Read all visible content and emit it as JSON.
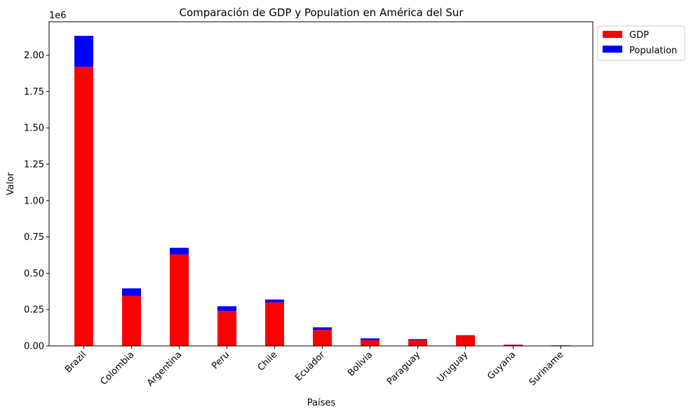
{
  "chart_data": {
    "type": "bar",
    "stacked": true,
    "title": "Comparación de GDP y Population en América del Sur",
    "xlabel": "Países",
    "ylabel": "Valor",
    "y_offset_label": "1e6",
    "ylim": [
      0,
      2.23
    ],
    "yticks": [
      "0.00",
      "0.25",
      "0.50",
      "0.75",
      "1.00",
      "1.25",
      "1.50",
      "1.75",
      "2.00"
    ],
    "ytick_values": [
      0,
      0.25,
      0.5,
      0.75,
      1.0,
      1.25,
      1.5,
      1.75,
      2.0
    ],
    "categories": [
      "Brazil",
      "Colombia",
      "Argentina",
      "Peru",
      "Chile",
      "Ecuador",
      "Bolivia",
      "Paraguay",
      "Uruguay",
      "Guyana",
      "Suriname"
    ],
    "series": [
      {
        "name": "GDP",
        "color": "#ff0000",
        "values": [
          1.92,
          0.345,
          0.63,
          0.24,
          0.3,
          0.11,
          0.04,
          0.04,
          0.07,
          0.008,
          0.004
        ]
      },
      {
        "name": "Population",
        "color": "#0000ff",
        "values": [
          0.213,
          0.051,
          0.045,
          0.033,
          0.019,
          0.018,
          0.012,
          0.007,
          0.0035,
          0.0008,
          0.0006
        ]
      }
    ],
    "legend": {
      "position": "outside-top-right",
      "entries": [
        "GDP",
        "Population"
      ]
    },
    "grid": false
  }
}
